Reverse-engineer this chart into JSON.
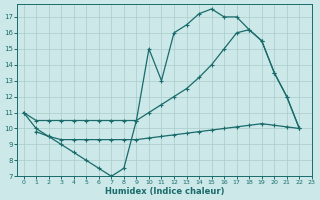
{
  "bg_color": "#cce8e8",
  "grid_color": "#aacccc",
  "line_color": "#1a6b6b",
  "line1_x": [
    0,
    1,
    2,
    3,
    4,
    5,
    6,
    7,
    8,
    9,
    10,
    11,
    12,
    13,
    14,
    15,
    16,
    17,
    18,
    19,
    20,
    21,
    22
  ],
  "line1_y": [
    11,
    10,
    9.5,
    9,
    8.5,
    8,
    7.5,
    7,
    7.5,
    10.5,
    15,
    13,
    16,
    16.5,
    17.2,
    17.5,
    17,
    17,
    16.2,
    15.5,
    13.5,
    12,
    10
  ],
  "line2_x": [
    0,
    1,
    2,
    3,
    4,
    5,
    6,
    7,
    8,
    9,
    10,
    11,
    12,
    13,
    14,
    15,
    16,
    17,
    18,
    19,
    20,
    21,
    22
  ],
  "line2_y": [
    11,
    10.5,
    10.5,
    10.5,
    10.5,
    10.5,
    10.5,
    10.5,
    10.5,
    10.5,
    11.0,
    11.5,
    12.0,
    12.5,
    13.2,
    14.0,
    15.0,
    16.0,
    16.2,
    15.5,
    13.5,
    12.0,
    10.0
  ],
  "line3_x": [
    1,
    2,
    3,
    4,
    5,
    6,
    7,
    8,
    9,
    10,
    11,
    12,
    13,
    14,
    15,
    16,
    17,
    18,
    19,
    20,
    21,
    22
  ],
  "line3_y": [
    9.8,
    9.5,
    9.3,
    9.3,
    9.3,
    9.3,
    9.3,
    9.3,
    9.3,
    9.4,
    9.5,
    9.6,
    9.7,
    9.8,
    9.9,
    10.0,
    10.1,
    10.2,
    10.3,
    10.2,
    10.1,
    10.0
  ],
  "xlim": [
    -0.5,
    23
  ],
  "ylim": [
    7,
    17.8
  ],
  "xlabel": "Humidex (Indice chaleur)",
  "xticks": [
    0,
    1,
    2,
    3,
    4,
    5,
    6,
    7,
    8,
    9,
    10,
    11,
    12,
    13,
    14,
    15,
    16,
    17,
    18,
    19,
    20,
    21,
    22,
    23
  ],
  "xtick_labels": [
    "0",
    "1",
    "2",
    "3",
    "4",
    "5",
    "6",
    "7",
    "8",
    "9",
    "10",
    "11",
    "12",
    "13",
    "14",
    "15",
    "16",
    "17",
    "18",
    "19",
    "20",
    "21",
    "22",
    "23"
  ],
  "yticks": [
    7,
    8,
    9,
    10,
    11,
    12,
    13,
    14,
    15,
    16,
    17
  ],
  "ytick_labels": [
    "7",
    "8",
    "9",
    "10",
    "11",
    "12",
    "13",
    "14",
    "15",
    "16",
    "17"
  ],
  "marker": "+",
  "markersize": 3,
  "linewidth": 0.9
}
